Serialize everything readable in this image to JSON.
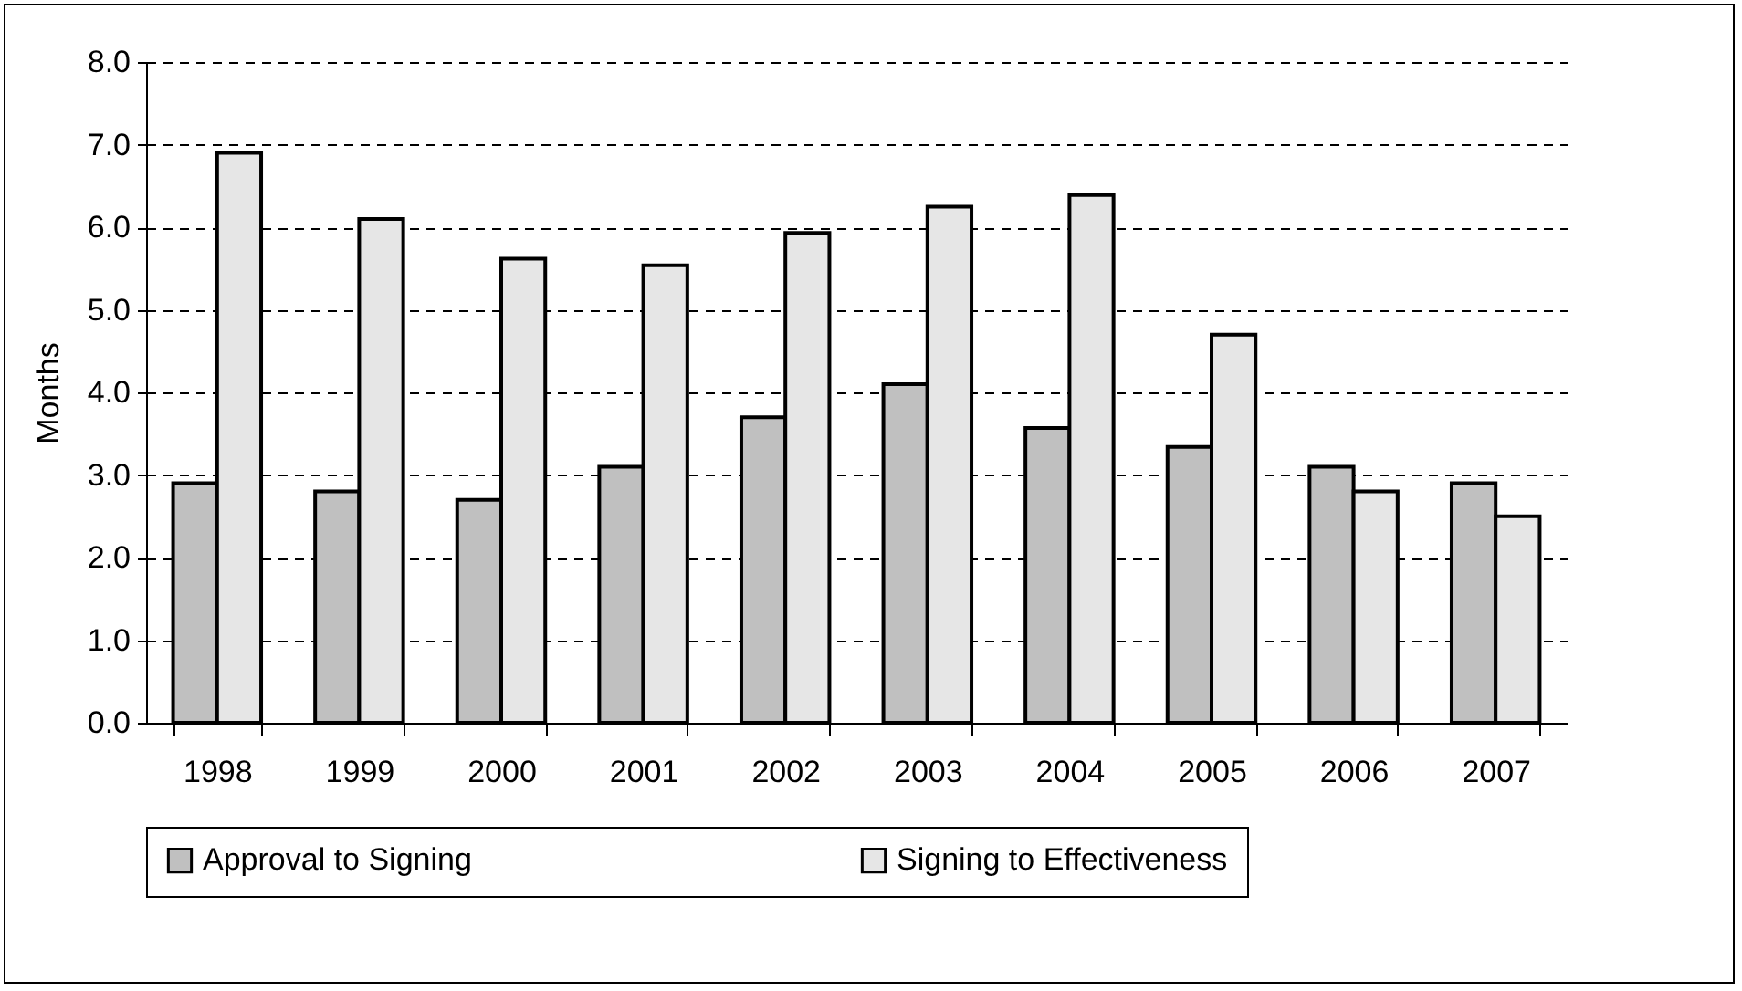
{
  "chart_data": {
    "type": "bar",
    "ylabel": "Months",
    "categories": [
      "1998",
      "1999",
      "2000",
      "2001",
      "2002",
      "2003",
      "2004",
      "2005",
      "2006",
      "2007"
    ],
    "series": [
      {
        "name": "Approval to Signing",
        "color": "#c0c0c0",
        "values": [
          2.9,
          2.8,
          2.7,
          3.1,
          3.7,
          4.1,
          3.57,
          3.34,
          3.1,
          2.9
        ]
      },
      {
        "name": "Signing to Effectiveness",
        "color": "#e6e6e6",
        "values": [
          6.9,
          6.1,
          5.62,
          5.54,
          5.93,
          6.25,
          6.39,
          4.7,
          2.8,
          2.5
        ]
      }
    ],
    "ylim": [
      0,
      8
    ],
    "yticks": [
      {
        "value": 0,
        "label": "0.0"
      },
      {
        "value": 1,
        "label": "1.0"
      },
      {
        "value": 2,
        "label": "2.0"
      },
      {
        "value": 3,
        "label": "3.0"
      },
      {
        "value": 4,
        "label": "4.0"
      },
      {
        "value": 5,
        "label": "5.0"
      },
      {
        "value": 6,
        "label": "6.0"
      },
      {
        "value": 7,
        "label": "7.0"
      },
      {
        "value": 8,
        "label": "8.0"
      }
    ],
    "grid": "y",
    "line_style": "dashed",
    "legend": "bottom"
  }
}
